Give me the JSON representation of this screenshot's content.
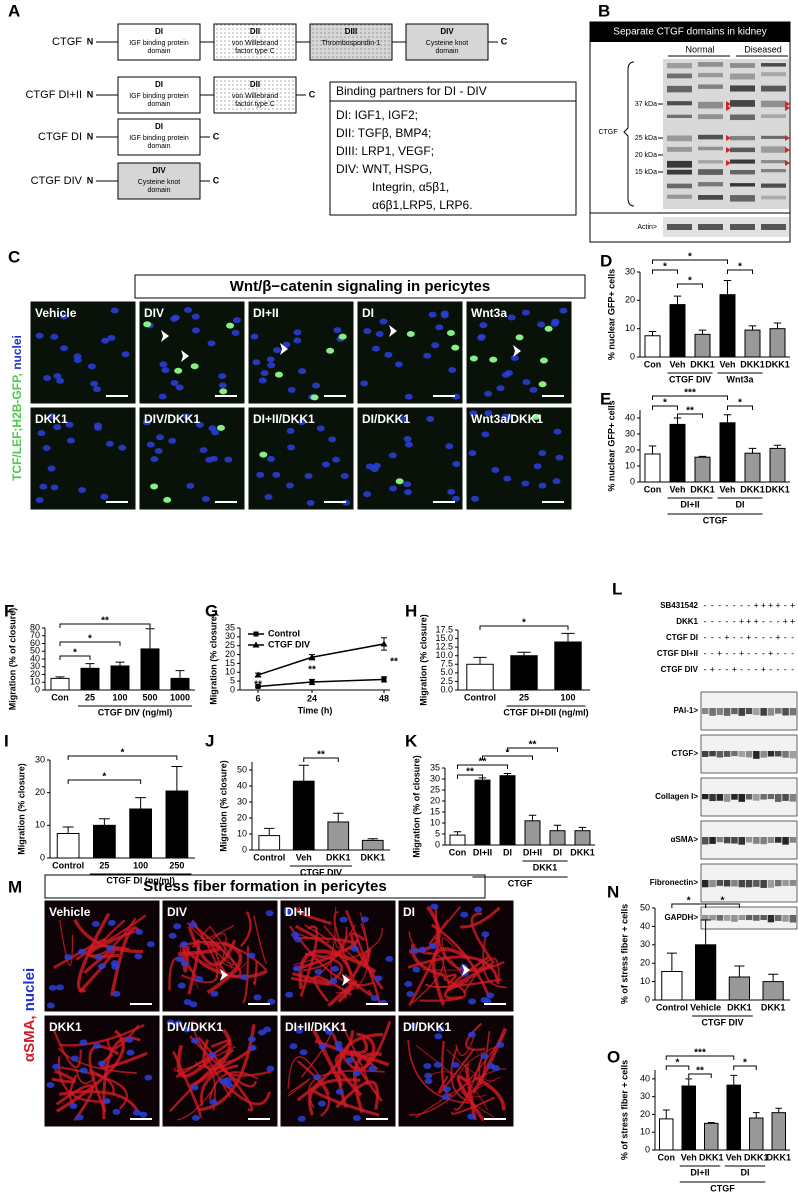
{
  "panel_a": {
    "letter": "A",
    "constructs": [
      {
        "name": "CTGF",
        "n": "N",
        "c": "C",
        "domains": [
          {
            "title": "DI",
            "desc": [
              "IGF binding protein",
              "domain"
            ]
          },
          {
            "title": "DII",
            "desc": [
              "von Willebrand",
              "factor type C"
            ]
          },
          {
            "title": "DIII",
            "desc": [
              "Thrombospondin-1"
            ]
          },
          {
            "title": "DIV",
            "desc": [
              "Cysteine knot",
              "domain"
            ]
          }
        ]
      },
      {
        "name": "CTGF DI+II",
        "n": "N",
        "c": "C",
        "domains": [
          {
            "title": "DI",
            "desc": [
              "IGF binding protein",
              "domain"
            ]
          },
          {
            "title": "DII",
            "desc": [
              "von Willebrand",
              "factor type C"
            ]
          }
        ]
      },
      {
        "name": "CTGF DI",
        "n": "N",
        "c": "C",
        "domains": [
          {
            "title": "DI",
            "desc": [
              "IGF binding protein",
              "domain"
            ]
          }
        ]
      },
      {
        "name": "CTGF DIV",
        "n": "N",
        "c": "C",
        "domains": [
          {
            "title": "DIV",
            "desc": [
              "Cysteine knot",
              "domain"
            ]
          }
        ]
      }
    ],
    "partners": {
      "title": "Binding partners for DI - DIV",
      "lines": [
        "DI: IGF1, IGF2;",
        "DII: TGFβ, BMP4;",
        "DIII: LRP1, VEGF;",
        "DIV: WNT, HSPG,",
        "Integrin, α5β1,",
        "α6β1,LRP5, LRP6."
      ]
    }
  },
  "panel_b": {
    "letter": "B",
    "title": "Separate CTGF domains in kidney",
    "groups": [
      "Normal",
      "Diseased"
    ],
    "markers": [
      "37 kDa",
      "25 kDa",
      "20 kDa",
      "15 kDa"
    ],
    "protein": "CTGF",
    "loading": "Actin>"
  },
  "panel_c": {
    "letter": "C",
    "title": "Wnt/β−catenin signaling in pericytes",
    "stain_label": [
      "TCF/LEF;H2B-GFP,",
      "nuclei"
    ],
    "images": [
      "Vehicle",
      "DIV",
      "DI+II",
      "DI",
      "Wnt3a",
      "DKK1",
      "DIV/DKK1",
      "DI+II/DKK1",
      "DI/DKK1",
      "Wnt3a/DKK1"
    ]
  },
  "panel_l": {
    "letter": "L",
    "conditions": [
      {
        "label": "SB431542",
        "marks": [
          "-",
          "-",
          "-",
          "-",
          "-",
          "-",
          "-",
          "+",
          "+",
          "+",
          "+",
          "-",
          "+"
        ]
      },
      {
        "label": "DKK1",
        "marks": [
          "-",
          "-",
          "-",
          "-",
          "-",
          "+",
          "+",
          "+",
          "-",
          "-",
          "-",
          "+",
          "+"
        ]
      },
      {
        "label": "CTGF DI",
        "marks": [
          "-",
          "-",
          "-",
          "+",
          "-",
          "-",
          "+",
          "-",
          "-",
          "-",
          "+",
          "-",
          "-"
        ]
      },
      {
        "label": "CTGF DI+II",
        "marks": [
          "-",
          "-",
          "+",
          "-",
          "-",
          "+",
          "-",
          "-",
          "-",
          "+",
          "-",
          "-",
          "-"
        ]
      },
      {
        "label": "CTGF DIV",
        "marks": [
          "-",
          "+",
          "-",
          "-",
          "+",
          "-",
          "-",
          "-",
          "+",
          "-",
          "-",
          "-",
          "-"
        ]
      }
    ],
    "blots": [
      "PAI-1>",
      "CTGF>",
      "Collagen I>",
      "αSMA>",
      "Fibronectin>",
      "GAPDH>"
    ]
  },
  "panel_m": {
    "letter": "M",
    "title": "Stress fiber formation in pericytes",
    "stain_label": [
      "αSMA,",
      "nuclei"
    ],
    "images": [
      "Vehicle",
      "DIV",
      "DI+II",
      "DI",
      "DKK1",
      "DIV/DKK1",
      "DI+II/DKK1",
      "DI/DKK1"
    ]
  },
  "chart_data": [
    {
      "type": "bar",
      "panel": "D",
      "ylabel": "% nuclear GFP+ cells",
      "ylim": [
        0,
        30
      ],
      "yticks": [
        0,
        10,
        20,
        30
      ],
      "categories": [
        "Con",
        "Veh",
        "DKK1",
        "Veh",
        "DKK1",
        "DKK1"
      ],
      "values": [
        7.5,
        18.5,
        8,
        22,
        9.5,
        10
      ],
      "errors": [
        1.5,
        3,
        1.5,
        5,
        1.5,
        2
      ],
      "colors": [
        "#ffffff",
        "#000000",
        "#999999",
        "#000000",
        "#999999",
        "#999999"
      ],
      "groups": [
        "CTGF DIV",
        "Wnt3a"
      ],
      "annotations": [
        "*",
        "*",
        "*",
        "*"
      ]
    },
    {
      "type": "bar",
      "panel": "E",
      "ylabel": "% nuclear GFP+ cells",
      "ylim": [
        0,
        45
      ],
      "yticks": [
        0,
        10,
        20,
        30,
        40
      ],
      "categories": [
        "Con",
        "Veh",
        "DKK1",
        "Veh",
        "DKK1",
        "DKK1"
      ],
      "values": [
        17.5,
        36,
        15.5,
        37,
        18,
        21
      ],
      "errors": [
        5,
        4,
        0.5,
        5,
        3,
        2
      ],
      "colors": [
        "#ffffff",
        "#000000",
        "#999999",
        "#000000",
        "#999999",
        "#999999"
      ],
      "groups": [
        "DI+II",
        "DI",
        "CTGF"
      ],
      "annotations": [
        "***",
        "*",
        "**",
        "*"
      ]
    },
    {
      "type": "bar",
      "panel": "F",
      "ylabel": "Migration (% of closure)",
      "ylim": [
        0,
        80
      ],
      "yticks": [
        0,
        10,
        20,
        30,
        40,
        50,
        60,
        70,
        80
      ],
      "categories": [
        "Con",
        "25",
        "100",
        "500",
        "1000"
      ],
      "values": [
        15,
        28,
        31,
        53,
        15
      ],
      "errors": [
        2,
        6,
        5,
        26,
        10
      ],
      "colors": [
        "#ffffff",
        "#000000",
        "#000000",
        "#000000",
        "#000000"
      ],
      "groups": [
        "CTGF DIV (ng/ml)"
      ],
      "annotations": [
        "*",
        "*",
        "**"
      ]
    },
    {
      "type": "line",
      "panel": "G",
      "xlabel": "Time (h)",
      "ylabel": "Migration (% closure)",
      "x": [
        6,
        24,
        48
      ],
      "xlim": [
        0,
        50
      ],
      "xticks": [
        6,
        24,
        48
      ],
      "ylim": [
        0,
        35
      ],
      "yticks": [
        0,
        5,
        10,
        15,
        20,
        25,
        30,
        35
      ],
      "series": [
        {
          "name": "Control",
          "color": "#000000",
          "values": [
            2,
            4.5,
            6
          ],
          "errors": [
            0.5,
            1.5,
            1.5
          ]
        },
        {
          "name": "CTGF DIV",
          "color": "#000000",
          "values": [
            8.5,
            18.5,
            26
          ],
          "errors": [
            1,
            1.5,
            3.5
          ]
        }
      ],
      "annotations": [
        "**",
        "**",
        "**"
      ]
    },
    {
      "type": "bar",
      "panel": "H",
      "ylabel": "Migration (% closure)",
      "ylim": [
        0,
        17.5
      ],
      "yticks": [
        {
          "value": 0,
          "label": "0.0"
        },
        2.5,
        {
          "value": 5,
          "label": "5.0"
        },
        7.5,
        {
          "value": 10,
          "label": "10.0"
        },
        12.5,
        {
          "value": 15,
          "label": "15.0"
        },
        17.5
      ],
      "categories": [
        "Control",
        "25",
        "100"
      ],
      "values": [
        7.5,
        10,
        14
      ],
      "errors": [
        2,
        1,
        2.5
      ],
      "colors": [
        "#ffffff",
        "#000000",
        "#000000"
      ],
      "groups": [
        "CTGF DI+DII (ng/ml)"
      ],
      "annotations": [
        "*"
      ]
    },
    {
      "type": "bar",
      "panel": "I",
      "ylabel": "Migration (% closure)",
      "ylim": [
        0,
        30
      ],
      "yticks": [
        0,
        10,
        20,
        30
      ],
      "categories": [
        "Control",
        "25",
        "100",
        "250"
      ],
      "values": [
        7.5,
        10,
        15,
        20.5
      ],
      "errors": [
        2,
        2,
        3.5,
        7.5
      ],
      "colors": [
        "#ffffff",
        "#000000",
        "#000000",
        "#000000"
      ],
      "groups": [
        "CTGF DI (ng/ml)"
      ],
      "annotations": [
        "*",
        "*"
      ]
    },
    {
      "type": "bar",
      "panel": "J",
      "ylabel": "Migration (% closure)",
      "ylim": [
        0,
        55
      ],
      "yticks": [
        0,
        10,
        20,
        30,
        40,
        50
      ],
      "categories": [
        "Control",
        "Veh",
        "DKK1",
        "DKK1"
      ],
      "values": [
        9,
        43,
        17.5,
        6
      ],
      "errors": [
        4.5,
        10,
        5.5,
        1
      ],
      "colors": [
        "#ffffff",
        "#000000",
        "#999999",
        "#999999"
      ],
      "groups": [
        "CTGF DIV"
      ],
      "annotations": [
        "**"
      ]
    },
    {
      "type": "bar",
      "panel": "K",
      "ylabel": "Migration (% of closure)",
      "ylim": [
        0,
        35
      ],
      "yticks": [
        0,
        5,
        10,
        15,
        20,
        25,
        30,
        35
      ],
      "categories": [
        "Con",
        "DI+II",
        "DI",
        "DI+II",
        "DI",
        "DKK1"
      ],
      "values": [
        4.5,
        29.5,
        31.5,
        11,
        6.5,
        6.5
      ],
      "errors": [
        1.5,
        1,
        1,
        2.5,
        2.5,
        1.5
      ],
      "colors": [
        "#ffffff",
        "#000000",
        "#000000",
        "#999999",
        "#999999",
        "#999999"
      ],
      "groups": [
        "DKK1",
        "CTGF"
      ],
      "annotations": [
        "**",
        "**",
        "*",
        "**"
      ]
    },
    {
      "type": "bar",
      "panel": "N",
      "ylabel": "% of stress fiber + cells",
      "ylim": [
        0,
        50
      ],
      "yticks": [
        0,
        10,
        20,
        30,
        40,
        50
      ],
      "categories": [
        "Control",
        "Vehicle",
        "DKK1",
        "DKK1"
      ],
      "values": [
        15.5,
        30,
        12.5,
        10
      ],
      "errors": [
        10,
        13.5,
        6,
        4
      ],
      "colors": [
        "#ffffff",
        "#000000",
        "#999999",
        "#999999"
      ],
      "groups": [
        "CTGF DIV"
      ],
      "annotations": [
        "*",
        "*"
      ]
    },
    {
      "type": "bar",
      "panel": "O",
      "ylabel": "% of stress fiber + cells",
      "ylim": [
        0,
        45
      ],
      "yticks": [
        0,
        10,
        20,
        30,
        40
      ],
      "categories": [
        "Con",
        "Veh",
        "DKK1",
        "Veh",
        "DKK1",
        "DKK1"
      ],
      "values": [
        17.5,
        36,
        15,
        36.5,
        18,
        21
      ],
      "errors": [
        5,
        4,
        0.5,
        5.5,
        3,
        2.5
      ],
      "colors": [
        "#ffffff",
        "#000000",
        "#999999",
        "#000000",
        "#999999",
        "#999999"
      ],
      "groups": [
        "DI+II",
        "DI",
        "CTGF"
      ],
      "annotations": [
        "***",
        "*",
        "**",
        "*"
      ]
    }
  ]
}
